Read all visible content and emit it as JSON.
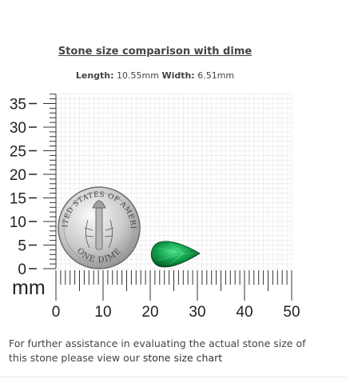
{
  "section": {
    "title": "Stone size comparison with dime",
    "length_label": "Length:",
    "length_value": "10.55mm",
    "width_label": "Width:",
    "width_value": "6.51mm"
  },
  "ruler": {
    "unit_label": "mm",
    "y_ticks": [
      "35",
      "30",
      "25",
      "20",
      "15",
      "10",
      "5",
      "0"
    ],
    "x_ticks": [
      "0",
      "10",
      "20",
      "30",
      "40",
      "50"
    ]
  },
  "dime": {
    "top_text": "UNITED STATES OF AMERICA",
    "bottom_text": "ONE DIME"
  },
  "stone": {
    "color": "#0f9b48",
    "shape": "pear"
  },
  "note": {
    "text": "For further assistance in evaluating the actual stone size of this stone please view our ",
    "link_text": "stone size chart"
  }
}
